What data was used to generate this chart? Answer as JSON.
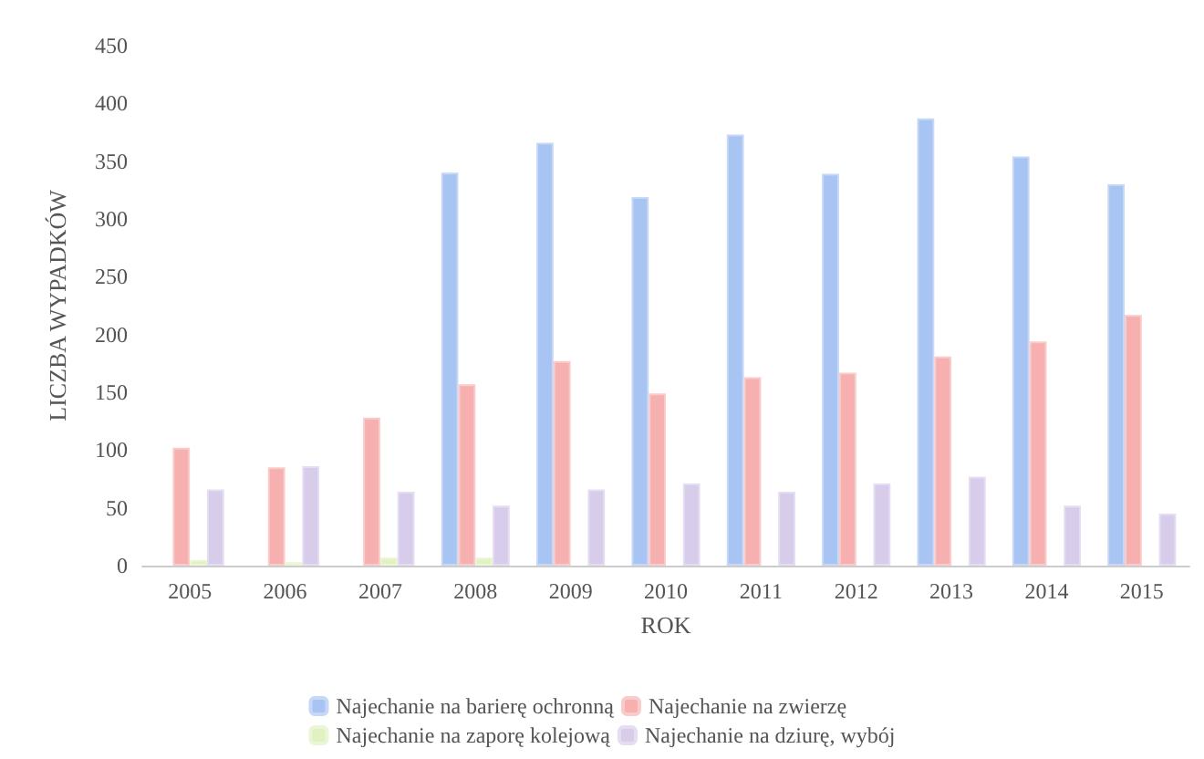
{
  "chart_data": {
    "type": "bar",
    "xlabel": "ROK",
    "ylabel": "LICZBA WYPADKÓW",
    "categories": [
      "2005",
      "2006",
      "2007",
      "2008",
      "2009",
      "2010",
      "2011",
      "2012",
      "2013",
      "2014",
      "2015"
    ],
    "series": [
      {
        "name": "Najechanie na barierę ochronną",
        "color": "#a8c4f2",
        "values": [
          null,
          null,
          null,
          340,
          366,
          319,
          373,
          339,
          387,
          354,
          330
        ]
      },
      {
        "name": "Najechanie na zwierzę",
        "color": "#f7b0b0",
        "values": [
          102,
          85,
          128,
          157,
          177,
          149,
          163,
          167,
          181,
          194,
          217
        ]
      },
      {
        "name": "Najechanie na zaporę kolejową",
        "color": "#dff2bf",
        "values": [
          5,
          3,
          7,
          7,
          null,
          null,
          null,
          null,
          null,
          null,
          null
        ]
      },
      {
        "name": "Najechanie na dziurę, wybój",
        "color": "#d8cceb",
        "values": [
          66,
          86,
          64,
          52,
          66,
          71,
          64,
          71,
          77,
          52,
          45
        ]
      }
    ],
    "ylim": [
      0,
      450
    ],
    "yticks": [
      0,
      50,
      100,
      150,
      200,
      250,
      300,
      350,
      400,
      450
    ],
    "grid": false,
    "legend": "bottom"
  }
}
